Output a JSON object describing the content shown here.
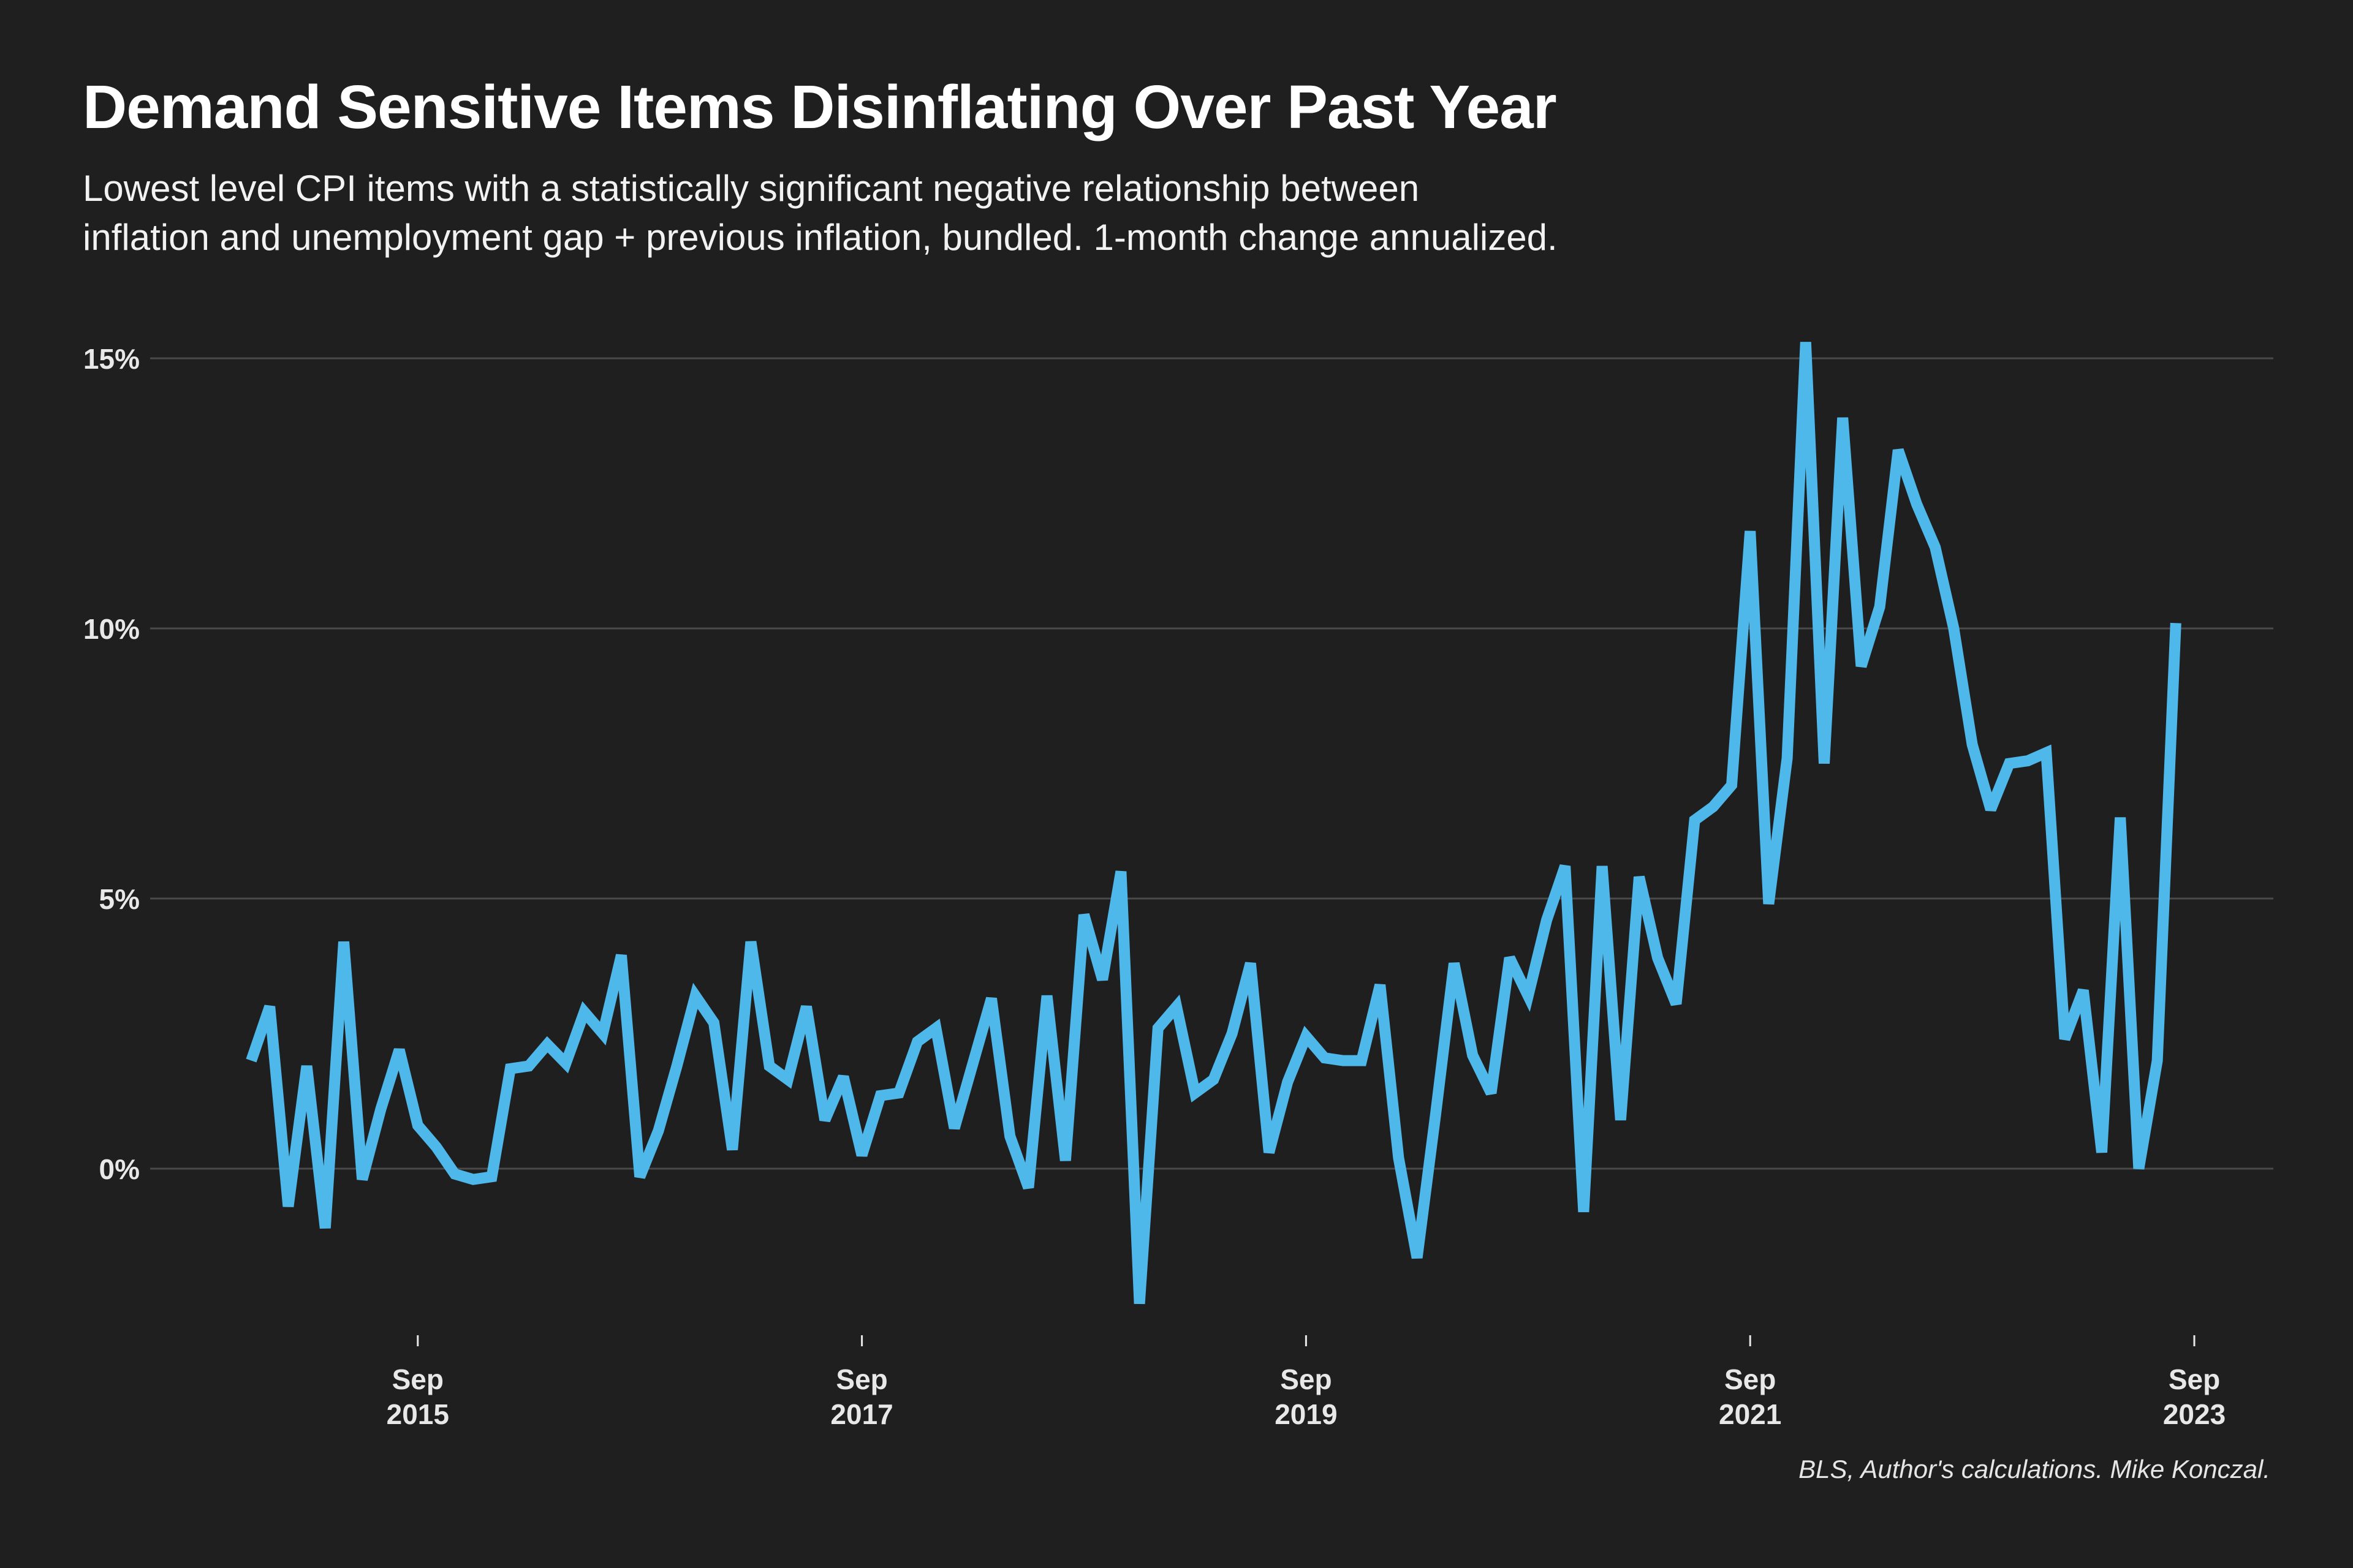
{
  "title": "Demand Sensitive Items Disinflating Over Past Year",
  "subtitle_line1": "Lowest level CPI items with a statistically significant negative relationship between",
  "subtitle_line2": "inflation and unemployment gap + previous inflation, bundled. 1-month change annualized.",
  "source": "BLS, Author's calculations. Mike Konczal.",
  "colors": {
    "background": "#1f1f1f",
    "line": "#4fb8ea",
    "grid": "#4a4a4a",
    "text": "#ffffff"
  },
  "chart_data": {
    "type": "line",
    "title": "Demand Sensitive Items Disinflating Over Past Year",
    "xlabel": "",
    "ylabel": "",
    "ylim": [
      -3,
      16
    ],
    "y_ticks": [
      {
        "value": 0,
        "label": "0%"
      },
      {
        "value": 5,
        "label": "5%"
      },
      {
        "value": 10,
        "label": "10%"
      },
      {
        "value": 15,
        "label": "15%"
      }
    ],
    "x_ticks": [
      {
        "date": "2015-09",
        "month": "Sep",
        "year": "2015"
      },
      {
        "date": "2017-09",
        "month": "Sep",
        "year": "2017"
      },
      {
        "date": "2019-09",
        "month": "Sep",
        "year": "2019"
      },
      {
        "date": "2021-09",
        "month": "Sep",
        "year": "2021"
      },
      {
        "date": "2023-09",
        "month": "Sep",
        "year": "2023"
      }
    ],
    "x_start": "2014-12",
    "frequency": "monthly",
    "grid": true,
    "legend": "none",
    "series": [
      {
        "values": [
          2.0,
          3.0,
          -0.7,
          1.9,
          -1.1,
          4.2,
          -0.2,
          1.1,
          2.2,
          0.8,
          0.4,
          -0.1,
          -0.2,
          -0.15,
          1.85,
          1.9,
          2.3,
          1.95,
          2.9,
          2.5,
          3.95,
          -0.15,
          0.7,
          1.9,
          3.2,
          2.7,
          0.35,
          4.2,
          1.9,
          1.65,
          3.0,
          0.9,
          1.7,
          0.25,
          1.35,
          1.4,
          2.35,
          2.6,
          0.75,
          1.95,
          3.15,
          0.6,
          -0.35,
          3.2,
          0.15,
          4.7,
          3.5,
          5.5,
          -2.5,
          2.6,
          3.0,
          1.4,
          1.65,
          2.5,
          3.8,
          0.3,
          1.6,
          2.45,
          2.05,
          2.0,
          2.0,
          3.4,
          0.2,
          -1.65,
          1.0,
          3.8,
          2.1,
          1.4,
          3.9,
          3.2,
          4.6,
          5.6,
          -0.8,
          5.6,
          0.9,
          5.4,
          3.9,
          3.05,
          6.45,
          6.7,
          7.1,
          11.8,
          4.9,
          7.6,
          15.3,
          7.5,
          13.9,
          9.3,
          10.4,
          13.3,
          12.3,
          11.5,
          10.0,
          7.85,
          6.65,
          7.5,
          7.55,
          7.7,
          2.4,
          3.3,
          0.3,
          6.5,
          0.0,
          2.0,
          10.1
        ]
      }
    ]
  }
}
